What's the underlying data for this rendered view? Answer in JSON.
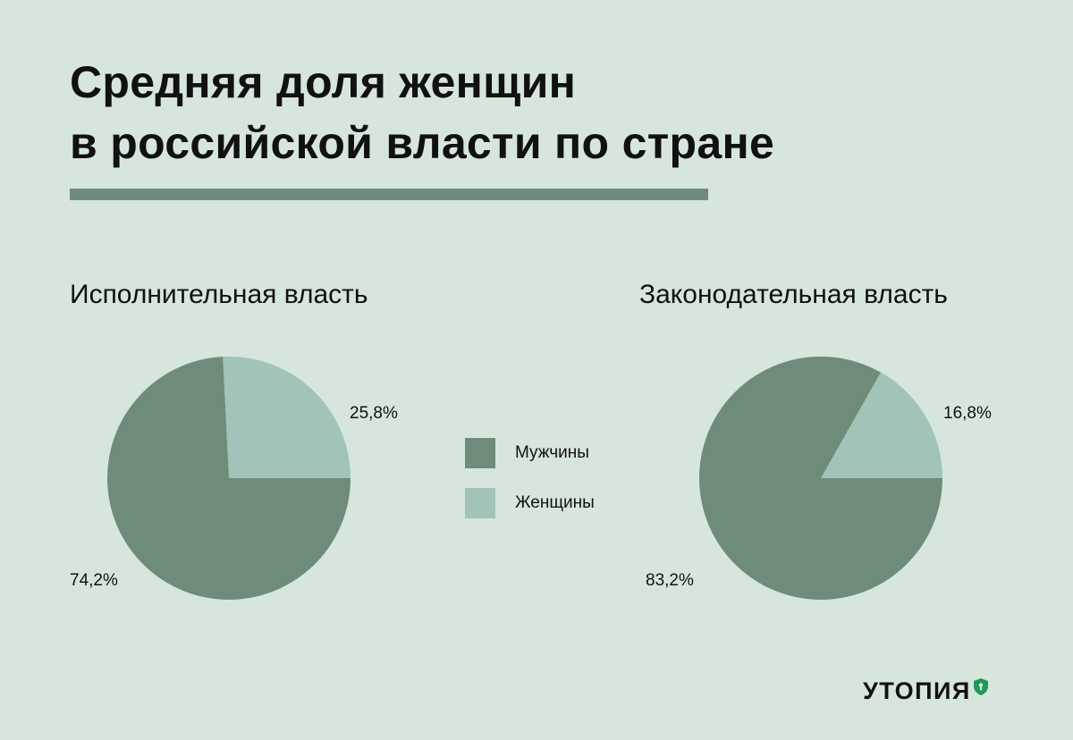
{
  "header": {
    "title_line1": "Средняя доля женщин",
    "title_line2": "в российской власти по стране"
  },
  "colors": {
    "background": "#d6e6dc",
    "men": "#6e8c79",
    "women": "#a2c3b8",
    "accent_bar": "#6e8c79",
    "logo_icon": "#1f9a58"
  },
  "legend": {
    "men": "Мужчины",
    "women": "Женщины"
  },
  "chart_data": [
    {
      "type": "pie",
      "title": "Исполнительная власть",
      "slices": [
        {
          "name": "Мужчины",
          "value": 74.2,
          "label": "74,2%"
        },
        {
          "name": "Женщины",
          "value": 25.8,
          "label": "25,8%"
        }
      ]
    },
    {
      "type": "pie",
      "title": "Законодательная власть",
      "slices": [
        {
          "name": "Мужчины",
          "value": 83.2,
          "label": "83,2%"
        },
        {
          "name": "Женщины",
          "value": 16.8,
          "label": "16,8%"
        }
      ]
    }
  ],
  "brand": {
    "name": "УТОПИЯ",
    "icon": "shield-lock-icon"
  }
}
